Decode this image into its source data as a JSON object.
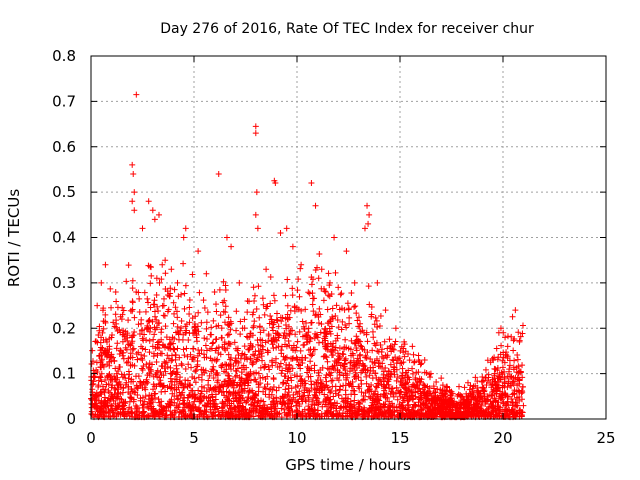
{
  "chart_data": {
    "type": "scatter",
    "title": "Day 276 of 2016, Rate Of TEC Index for receiver chur",
    "xlabel": "GPS time / hours",
    "ylabel": "ROTI / TECUs",
    "xlim": [
      0,
      25
    ],
    "ylim": [
      0,
      0.8
    ],
    "xticks": [
      0,
      5,
      10,
      15,
      20,
      25
    ],
    "yticks": [
      0,
      0.1,
      0.2,
      0.3,
      0.4,
      0.5,
      0.6,
      0.7,
      0.8
    ],
    "xtick_labels": [
      "0",
      "5",
      "10",
      "15",
      "20",
      "25"
    ],
    "ytick_labels": [
      "0",
      "0.1",
      "0.2",
      "0.3",
      "0.4",
      "0.5",
      "0.6",
      "0.7",
      "0.8"
    ],
    "grid": true,
    "marker": "+",
    "color": "#ff0000",
    "series": [
      {
        "name": "ROTI",
        "points": [
          [
            2.2,
            0.715
          ],
          [
            2.0,
            0.56
          ],
          [
            2.05,
            0.54
          ],
          [
            2.1,
            0.5
          ],
          [
            2.0,
            0.48
          ],
          [
            2.1,
            0.46
          ],
          [
            8.0,
            0.645
          ],
          [
            8.0,
            0.63
          ],
          [
            8.05,
            0.5
          ],
          [
            8.0,
            0.45
          ],
          [
            8.1,
            0.42
          ],
          [
            6.2,
            0.54
          ],
          [
            8.9,
            0.525
          ],
          [
            8.95,
            0.52
          ],
          [
            10.7,
            0.52
          ],
          [
            10.9,
            0.47
          ],
          [
            2.8,
            0.48
          ],
          [
            3.0,
            0.46
          ],
          [
            3.1,
            0.44
          ],
          [
            2.5,
            0.42
          ],
          [
            3.3,
            0.45
          ],
          [
            13.4,
            0.47
          ],
          [
            13.5,
            0.45
          ],
          [
            13.45,
            0.43
          ],
          [
            13.3,
            0.42
          ],
          [
            4.6,
            0.42
          ],
          [
            4.5,
            0.4
          ],
          [
            9.5,
            0.42
          ],
          [
            9.2,
            0.41
          ],
          [
            11.8,
            0.4
          ],
          [
            6.6,
            0.4
          ],
          [
            6.8,
            0.38
          ],
          [
            5.2,
            0.37
          ],
          [
            9.8,
            0.38
          ],
          [
            12.4,
            0.37
          ],
          [
            20.6,
            0.24
          ],
          [
            19.9,
            0.2
          ],
          [
            19.8,
            0.19
          ],
          [
            20.1,
            0.18
          ],
          [
            20.8,
            0.17
          ],
          [
            16.2,
            0.13
          ],
          [
            16.0,
            0.12
          ],
          [
            15.9,
            0.14
          ],
          [
            17.5,
            0.06
          ],
          [
            18.3,
            0.08
          ],
          [
            19.0,
            0.07
          ],
          [
            18.8,
            0.06
          ],
          [
            17.2,
            0.05
          ],
          [
            19.6,
            0.1
          ],
          [
            20.3,
            0.11
          ],
          [
            0.3,
            0.25
          ],
          [
            0.5,
            0.3
          ],
          [
            0.7,
            0.34
          ],
          [
            1.2,
            0.28
          ],
          [
            1.5,
            0.22
          ],
          [
            3.6,
            0.35
          ],
          [
            3.9,
            0.33
          ],
          [
            4.2,
            0.3
          ],
          [
            5.6,
            0.32
          ],
          [
            6.0,
            0.28
          ],
          [
            7.2,
            0.3
          ],
          [
            7.6,
            0.26
          ],
          [
            8.5,
            0.33
          ],
          [
            10.2,
            0.34
          ],
          [
            11.2,
            0.33
          ],
          [
            11.6,
            0.3
          ],
          [
            12.0,
            0.29
          ],
          [
            12.8,
            0.3
          ],
          [
            13.9,
            0.3
          ],
          [
            14.3,
            0.24
          ],
          [
            14.8,
            0.2
          ],
          [
            15.2,
            0.17
          ],
          [
            15.6,
            0.16
          ],
          [
            16.5,
            0.1
          ],
          [
            17.0,
            0.09
          ]
        ]
      }
    ],
    "density_profile": [
      [
        0.0,
        0.1
      ],
      [
        0.5,
        0.16
      ],
      [
        1.0,
        0.17
      ],
      [
        1.5,
        0.18
      ],
      [
        2.0,
        0.23
      ],
      [
        2.5,
        0.2
      ],
      [
        3.0,
        0.24
      ],
      [
        3.5,
        0.21
      ],
      [
        4.0,
        0.23
      ],
      [
        4.5,
        0.22
      ],
      [
        5.0,
        0.2
      ],
      [
        5.5,
        0.17
      ],
      [
        6.0,
        0.16
      ],
      [
        6.5,
        0.19
      ],
      [
        7.0,
        0.14
      ],
      [
        7.5,
        0.15
      ],
      [
        8.0,
        0.2
      ],
      [
        8.5,
        0.19
      ],
      [
        9.0,
        0.22
      ],
      [
        9.5,
        0.2
      ],
      [
        10.0,
        0.21
      ],
      [
        10.5,
        0.21
      ],
      [
        11.0,
        0.23
      ],
      [
        11.5,
        0.21
      ],
      [
        12.0,
        0.2
      ],
      [
        12.5,
        0.19
      ],
      [
        13.0,
        0.18
      ],
      [
        13.5,
        0.19
      ],
      [
        14.0,
        0.15
      ],
      [
        14.5,
        0.12
      ],
      [
        15.0,
        0.11
      ],
      [
        15.5,
        0.1
      ],
      [
        16.0,
        0.09
      ],
      [
        16.5,
        0.06
      ],
      [
        17.0,
        0.05
      ],
      [
        17.5,
        0.04
      ],
      [
        18.0,
        0.04
      ],
      [
        18.5,
        0.05
      ],
      [
        19.0,
        0.07
      ],
      [
        19.5,
        0.1
      ],
      [
        20.0,
        0.13
      ],
      [
        20.5,
        0.14
      ],
      [
        21.0,
        0.14
      ]
    ]
  }
}
